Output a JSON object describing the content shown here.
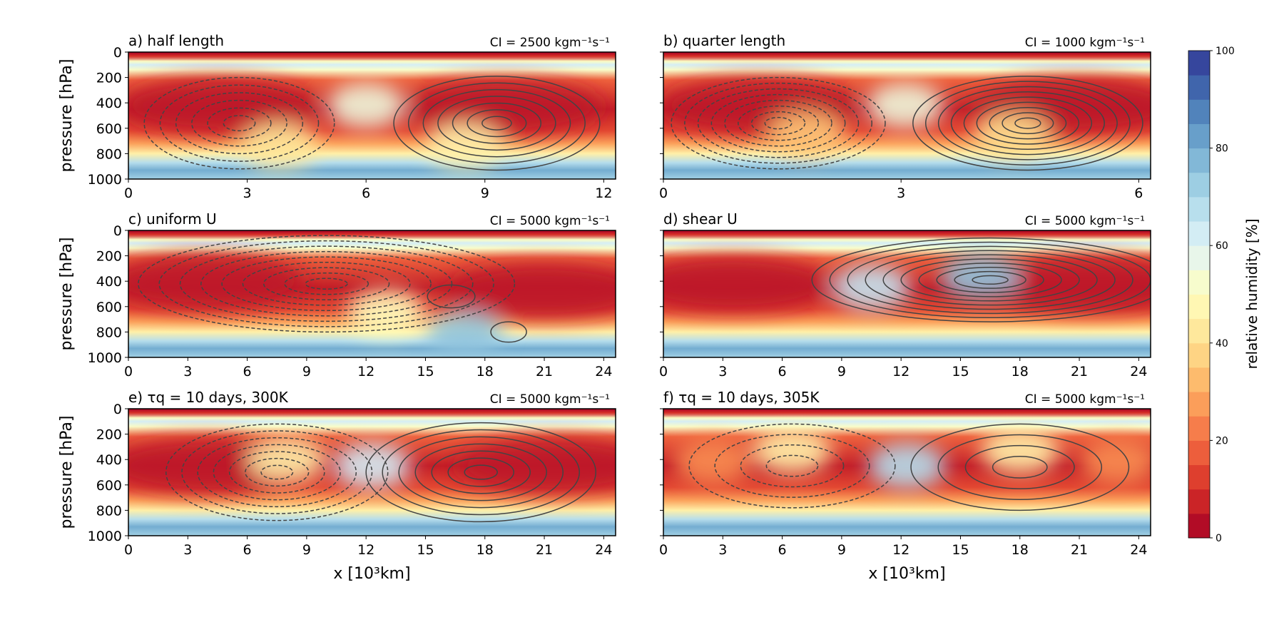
{
  "chart_data": [
    {
      "type": "heatmap",
      "panel": "a",
      "title": "a) half length",
      "ci": "CI = 2500 kgm⁻¹s⁻¹",
      "ylabel": "pressure [hPa]",
      "xlabel": "",
      "xlim": [
        0,
        12.3
      ],
      "ylim": [
        1000,
        0
      ],
      "xticks": [
        0,
        3,
        6,
        9,
        12
      ],
      "yticks": [
        0,
        200,
        400,
        600,
        800,
        1000
      ],
      "show_ytick_labels": true,
      "dry_cores": [
        {
          "x": 2.3,
          "p": 420,
          "rh": 5
        },
        {
          "x": 9.5,
          "p": 430,
          "rh": 5
        },
        {
          "x": 6.0,
          "p": 420,
          "rh": 55
        },
        {
          "x": 3.8,
          "p": 740,
          "rh": 42
        },
        {
          "x": 8.5,
          "p": 740,
          "rh": 45
        }
      ],
      "circulations": [
        {
          "sign": "negative",
          "xc": 2.8,
          "pc": 560,
          "rx": 2.4,
          "rp": 360,
          "levels": 6
        },
        {
          "sign": "positive",
          "xc": 9.3,
          "pc": 560,
          "rx": 2.6,
          "rp": 370,
          "levels": 7
        }
      ]
    },
    {
      "type": "heatmap",
      "panel": "b",
      "title": "b) quarter length",
      "ci": "CI = 1000 kgm⁻¹s⁻¹",
      "ylabel": "",
      "xlabel": "",
      "xlim": [
        0,
        6.15
      ],
      "ylim": [
        1000,
        0
      ],
      "xticks": [
        0,
        3,
        6
      ],
      "yticks": [
        0,
        200,
        400,
        600,
        800,
        1000
      ],
      "show_ytick_labels": false,
      "dry_cores": [
        {
          "x": 1.2,
          "p": 420,
          "rh": 5
        },
        {
          "x": 5.2,
          "p": 420,
          "rh": 5
        },
        {
          "x": 3.05,
          "p": 420,
          "rh": 55
        },
        {
          "x": 1.8,
          "p": 650,
          "rh": 35
        },
        {
          "x": 4.4,
          "p": 660,
          "rh": 40
        }
      ],
      "circulations": [
        {
          "sign": "negative",
          "xc": 1.45,
          "pc": 560,
          "rx": 1.35,
          "rp": 360,
          "levels": 8
        },
        {
          "sign": "positive",
          "xc": 4.6,
          "pc": 560,
          "rx": 1.45,
          "rp": 370,
          "levels": 9
        }
      ]
    },
    {
      "type": "heatmap",
      "panel": "c",
      "title": "c) uniform U",
      "ci": "CI = 5000 kgm⁻¹s⁻¹",
      "ylabel": "pressure [hPa]",
      "xlabel": "",
      "xlim": [
        0,
        24.6
      ],
      "ylim": [
        1000,
        0
      ],
      "xticks": [
        0,
        3,
        6,
        9,
        12,
        15,
        18,
        21,
        24
      ],
      "yticks": [
        0,
        200,
        400,
        600,
        800,
        1000
      ],
      "show_ytick_labels": true,
      "dry_cores": [
        {
          "x": 4.0,
          "p": 400,
          "rh": 5
        },
        {
          "x": 21.0,
          "p": 480,
          "rh": 5
        },
        {
          "x": 13.0,
          "p": 650,
          "rh": 50
        },
        {
          "x": 17.0,
          "p": 820,
          "rh": 75
        }
      ],
      "circulations": [
        {
          "sign": "negative",
          "xc": 10.0,
          "pc": 420,
          "rx": 9.5,
          "rp": 380,
          "levels": 9
        },
        {
          "sign": "positive",
          "xc": 16.3,
          "pc": 520,
          "rx": 1.2,
          "rp": 90,
          "levels": 1
        },
        {
          "sign": "positive",
          "xc": 19.2,
          "pc": 800,
          "rx": 0.9,
          "rp": 80,
          "levels": 1
        }
      ]
    },
    {
      "type": "heatmap",
      "panel": "d",
      "title": "d) shear U",
      "ci": "CI = 5000 kgm⁻¹s⁻¹",
      "ylabel": "",
      "xlabel": "",
      "xlim": [
        0,
        24.6
      ],
      "ylim": [
        1000,
        0
      ],
      "xticks": [
        0,
        3,
        6,
        9,
        12,
        15,
        18,
        21,
        24
      ],
      "yticks": [
        0,
        200,
        400,
        600,
        800,
        1000
      ],
      "show_ytick_labels": false,
      "dry_cores": [
        {
          "x": 3.5,
          "p": 420,
          "rh": 5
        },
        {
          "x": 21.5,
          "p": 420,
          "rh": 5
        },
        {
          "x": 10.5,
          "p": 450,
          "rh": 65
        },
        {
          "x": 16.0,
          "p": 360,
          "rh": 75
        }
      ],
      "circulations": [
        {
          "sign": "positive",
          "xc": 16.5,
          "pc": 390,
          "rx": 9.0,
          "rp": 330,
          "levels": 10
        }
      ]
    },
    {
      "type": "heatmap",
      "panel": "e",
      "title": "e) τq = 10 days, 300K",
      "ci": "CI = 5000 kgm⁻¹s⁻¹",
      "ylabel": "pressure [hPa]",
      "xlabel": "x [10³km]",
      "xlim": [
        0,
        24.6
      ],
      "ylim": [
        1000,
        0
      ],
      "xticks": [
        0,
        3,
        6,
        9,
        12,
        15,
        18,
        21,
        24
      ],
      "yticks": [
        0,
        200,
        400,
        600,
        800,
        1000
      ],
      "show_ytick_labels": true,
      "dry_cores": [
        {
          "x": 4.0,
          "p": 450,
          "rh": 5
        },
        {
          "x": 21.5,
          "p": 450,
          "rh": 5
        },
        {
          "x": 12.3,
          "p": 450,
          "rh": 62
        },
        {
          "x": 8.0,
          "p": 400,
          "rh": 45
        }
      ],
      "circulations": [
        {
          "sign": "negative",
          "xc": 7.5,
          "pc": 500,
          "rx": 5.6,
          "rp": 380,
          "levels": 7
        },
        {
          "sign": "positive",
          "xc": 17.8,
          "pc": 500,
          "rx": 5.8,
          "rp": 390,
          "levels": 7
        }
      ]
    },
    {
      "type": "heatmap",
      "panel": "f",
      "title": "f) τq = 10 days, 305K",
      "ci": "CI = 5000 kgm⁻¹s⁻¹",
      "ylabel": "",
      "xlabel": "x [10³km]",
      "xlim": [
        0,
        24.6
      ],
      "ylim": [
        1000,
        0
      ],
      "xticks": [
        0,
        3,
        6,
        9,
        12,
        15,
        18,
        21,
        24
      ],
      "yticks": [
        0,
        200,
        400,
        600,
        800,
        1000
      ],
      "show_ytick_labels": false,
      "dry_cores": [
        {
          "x": 2.5,
          "p": 420,
          "rh": 25
        },
        {
          "x": 23.0,
          "p": 420,
          "rh": 25
        },
        {
          "x": 12.3,
          "p": 450,
          "rh": 68
        },
        {
          "x": 6.5,
          "p": 330,
          "rh": 45
        },
        {
          "x": 18.0,
          "p": 330,
          "rh": 45
        }
      ],
      "circulations": [
        {
          "sign": "negative",
          "xc": 6.5,
          "pc": 450,
          "rx": 5.2,
          "rp": 330,
          "levels": 4
        },
        {
          "sign": "positive",
          "xc": 18.0,
          "pc": 460,
          "rx": 5.5,
          "rp": 340,
          "levels": 4
        }
      ]
    }
  ],
  "colorbar": {
    "label": "relative humidity [%]",
    "range": [
      0,
      100
    ],
    "ticks": [
      0,
      20,
      40,
      60,
      80,
      100
    ],
    "colormap": "RdYlBu",
    "levels": 20
  },
  "colors": {
    "contour": "#444444",
    "axes": "#000000"
  }
}
